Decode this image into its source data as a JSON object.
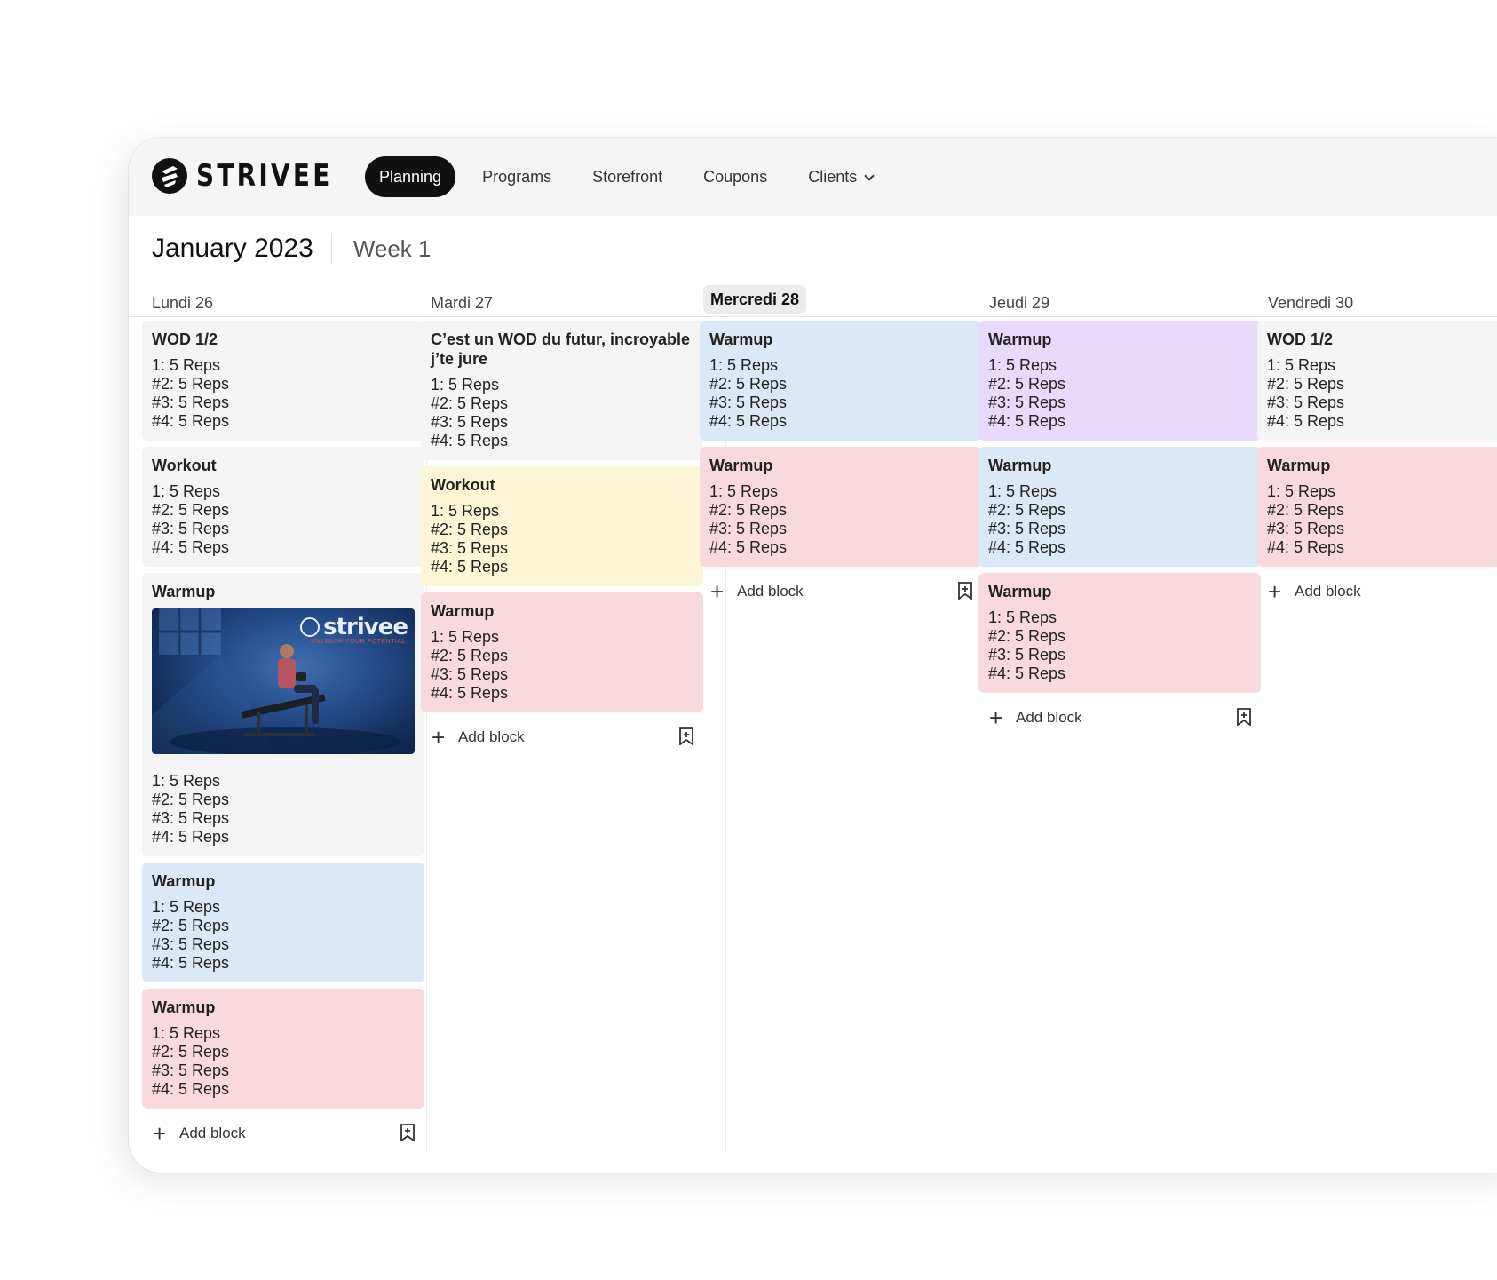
{
  "app": {
    "brand": "STRIVEE"
  },
  "nav": {
    "items": [
      {
        "label": "Planning"
      },
      {
        "label": "Programs"
      },
      {
        "label": "Storefront"
      },
      {
        "label": "Coupons"
      },
      {
        "label": "Clients"
      }
    ]
  },
  "header": {
    "month": "January 2023",
    "week": "Week 1"
  },
  "days": [
    {
      "label": "Lundi 26",
      "blocks": [
        {
          "title": "WOD 1/2",
          "color": "#f4f4f4",
          "lines": [
            "1: 5 Reps",
            "#2: 5 Reps",
            "#3: 5 Reps",
            "#4: 5 Reps"
          ]
        },
        {
          "title": "Workout",
          "color": "#f4f4f4",
          "lines": [
            "1: 5 Reps",
            "#2: 5 Reps",
            "#3: 5 Reps",
            "#4: 5 Reps"
          ]
        },
        {
          "title": "Warmup",
          "color": "#f4f4f4",
          "image_brand": "strivee",
          "image_tagline": "UNLEASH YOUR POTENTIAL",
          "lines": [
            "1: 5 Reps",
            "#2: 5 Reps",
            "#3: 5 Reps",
            "#4: 5 Reps"
          ]
        },
        {
          "title": "Warmup",
          "color": "#dbe8f8",
          "lines": [
            "1: 5 Reps",
            "#2: 5 Reps",
            "#3: 5 Reps",
            "#4: 5 Reps"
          ]
        },
        {
          "title": "Warmup",
          "color": "#f8dade",
          "lines": [
            "1: 5 Reps",
            "#2: 5 Reps",
            "#3: 5 Reps",
            "#4: 5 Reps"
          ]
        }
      ],
      "add_label": "Add block"
    },
    {
      "label": "Mardi 27",
      "blocks": [
        {
          "title": "C’est un WOD du futur, incroyable j’te jure",
          "color": "#f4f4f4",
          "lines": [
            "1: 5 Reps",
            "#2: 5 Reps",
            "#3: 5 Reps",
            "#4: 5 Reps"
          ]
        },
        {
          "title": "Workout",
          "color": "#fdf5d6",
          "lines": [
            "1: 5 Reps",
            "#2: 5 Reps",
            "#3: 5 Reps",
            "#4: 5 Reps"
          ]
        },
        {
          "title": "Warmup",
          "color": "#f8dade",
          "lines": [
            "1: 5 Reps",
            "#2: 5 Reps",
            "#3: 5 Reps",
            "#4: 5 Reps"
          ]
        }
      ],
      "add_label": "Add block"
    },
    {
      "label": "Mercredi 28",
      "today": true,
      "blocks": [
        {
          "title": "Warmup",
          "color": "#dbe8f8",
          "lines": [
            "1: 5 Reps",
            "#2: 5 Reps",
            "#3: 5 Reps",
            "#4: 5 Reps"
          ]
        },
        {
          "title": "Warmup",
          "color": "#f8dade",
          "lines": [
            "1: 5 Reps",
            "#2: 5 Reps",
            "#3: 5 Reps",
            "#4: 5 Reps"
          ]
        }
      ],
      "add_label": "Add block"
    },
    {
      "label": "Jeudi 29",
      "blocks": [
        {
          "title": "Warmup",
          "color": "#e7dafa",
          "lines": [
            "1: 5 Reps",
            "#2: 5 Reps",
            "#3: 5 Reps",
            "#4: 5 Reps"
          ]
        },
        {
          "title": "Warmup",
          "color": "#dbe8f8",
          "lines": [
            "1: 5 Reps",
            "#2: 5 Reps",
            "#3: 5 Reps",
            "#4: 5 Reps"
          ]
        },
        {
          "title": "Warmup",
          "color": "#f8dade",
          "lines": [
            "1: 5 Reps",
            "#2: 5 Reps",
            "#3: 5 Reps",
            "#4: 5 Reps"
          ]
        }
      ],
      "add_label": "Add block"
    },
    {
      "label": "Vendredi 30",
      "blocks": [
        {
          "title": "WOD 1/2",
          "color": "#f4f4f4",
          "lines": [
            "1: 5 Reps",
            "#2: 5 Reps",
            "#3: 5 Reps",
            "#4: 5 Reps"
          ]
        },
        {
          "title": "Warmup",
          "color": "#f8dade",
          "lines": [
            "1: 5 Reps",
            "#2: 5 Reps",
            "#3: 5 Reps",
            "#4: 5 Reps"
          ]
        }
      ],
      "add_label": "Add block"
    }
  ]
}
